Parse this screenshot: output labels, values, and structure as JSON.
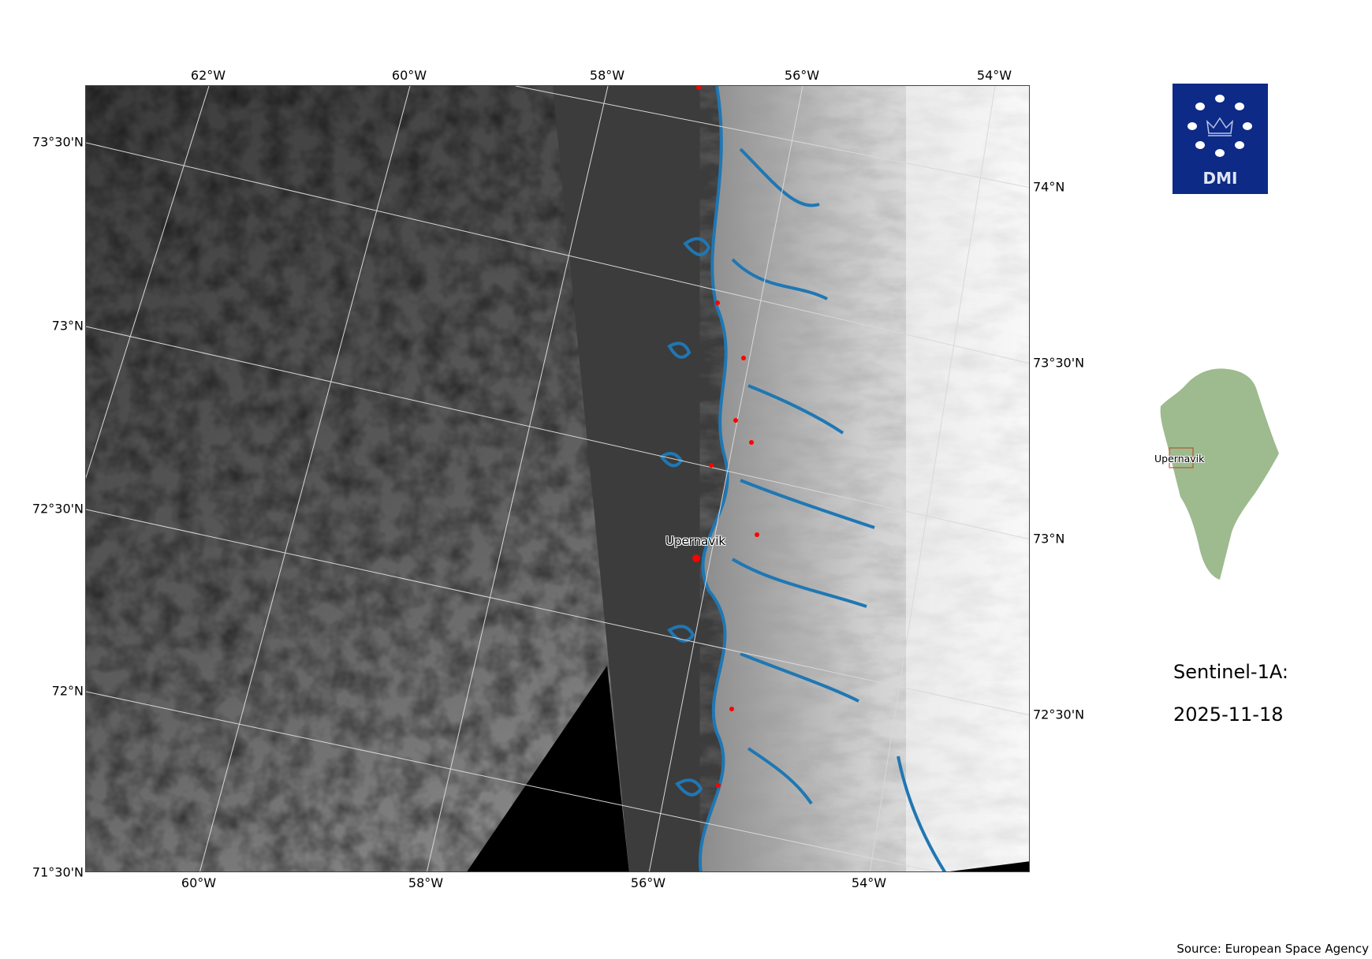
{
  "map": {
    "satellite": "Sentinel-1A:",
    "date": "2025-11-18",
    "source": "Source: European Space Agency",
    "logo_text": "DMI",
    "place_label": "Upernavik",
    "inset_label": "Upernavik",
    "top_lon_labels": [
      "62°W",
      "60°W",
      "58°W",
      "56°W",
      "54°W"
    ],
    "bottom_lon_labels": [
      "60°W",
      "58°W",
      "56°W",
      "54°W"
    ],
    "left_lat_labels": [
      "73°30'N",
      "73°N",
      "72°30'N",
      "72°N",
      "71°30'N"
    ],
    "right_lat_labels": [
      "74°N",
      "73°30'N",
      "73°N",
      "72°30'N"
    ],
    "colors": {
      "coastline": "#1f77b4",
      "settlement": "#ff0000",
      "logo_bg": "#0d2a86",
      "inset_land": "#9dbb8e",
      "inset_box": "#b5451b"
    }
  }
}
